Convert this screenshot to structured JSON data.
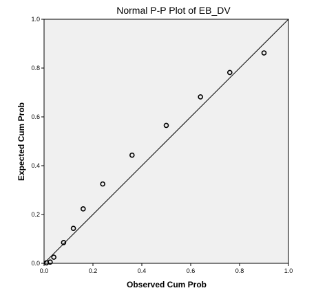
{
  "chart_data": {
    "type": "scatter",
    "title": "Normal P-P Plot of EB_DV",
    "xlabel": "Observed Cum Prob",
    "ylabel": "Expected Cum Prob",
    "xlim": [
      0,
      1
    ],
    "ylim": [
      0,
      1
    ],
    "x_ticks": [
      "0.0",
      "0.2",
      "0.4",
      "0.6",
      "0.8",
      "1.0"
    ],
    "y_ticks": [
      "0.0",
      "0.2",
      "0.4",
      "0.6",
      "0.8",
      "1.0"
    ],
    "reference_line": {
      "from": [
        0,
        0
      ],
      "to": [
        1,
        1
      ]
    },
    "grid": false,
    "background_color": "#f0f0f0",
    "points": [
      {
        "x": 0.01,
        "y": 0.002
      },
      {
        "x": 0.025,
        "y": 0.005
      },
      {
        "x": 0.04,
        "y": 0.025
      },
      {
        "x": 0.08,
        "y": 0.085
      },
      {
        "x": 0.12,
        "y": 0.143
      },
      {
        "x": 0.16,
        "y": 0.223
      },
      {
        "x": 0.24,
        "y": 0.325
      },
      {
        "x": 0.36,
        "y": 0.443
      },
      {
        "x": 0.5,
        "y": 0.565
      },
      {
        "x": 0.64,
        "y": 0.682
      },
      {
        "x": 0.76,
        "y": 0.782
      },
      {
        "x": 0.9,
        "y": 0.862
      }
    ]
  }
}
